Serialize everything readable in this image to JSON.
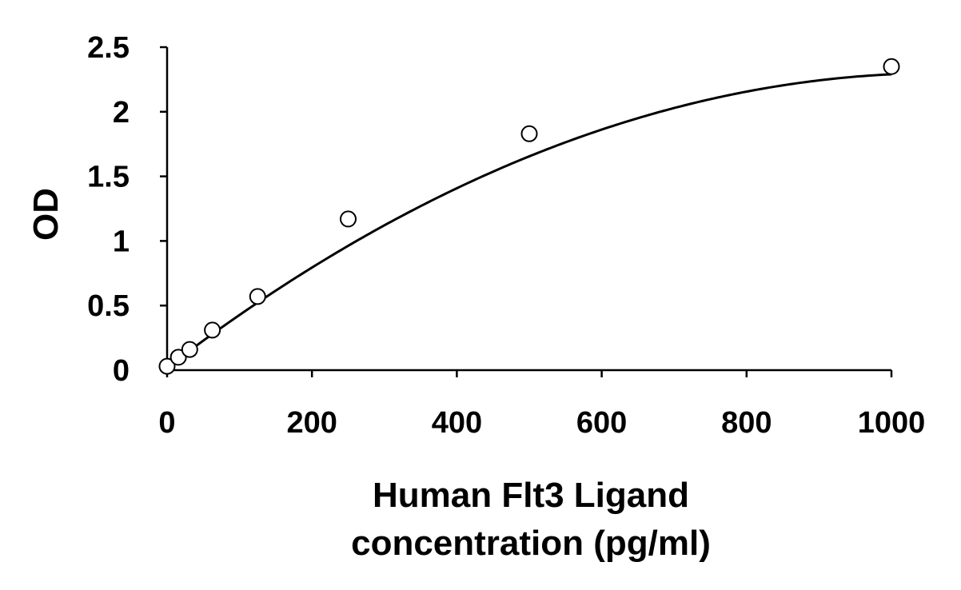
{
  "chart_data": {
    "type": "scatter",
    "title": "",
    "xlabel_lines": [
      "Human Flt3 Ligand",
      "concentration (pg/ml)"
    ],
    "ylabel": "OD",
    "xlim": [
      0,
      1000
    ],
    "ylim": [
      0,
      2.5
    ],
    "x_ticks": [
      0,
      200,
      400,
      600,
      800,
      1000
    ],
    "y_ticks": [
      0,
      0.5,
      1,
      1.5,
      2,
      2.5
    ],
    "y_tick_labels": [
      "0",
      "0.5",
      "1",
      "1.5",
      "2",
      "2.5"
    ],
    "grid": false,
    "legend": "none",
    "points": [
      {
        "x": 0,
        "y": 0.03
      },
      {
        "x": 15.6,
        "y": 0.1
      },
      {
        "x": 31.25,
        "y": 0.16
      },
      {
        "x": 62.5,
        "y": 0.31
      },
      {
        "x": 125,
        "y": 0.57
      },
      {
        "x": 250,
        "y": 1.17
      },
      {
        "x": 500,
        "y": 1.83
      },
      {
        "x": 1000,
        "y": 2.35
      }
    ],
    "fit_curve": {
      "type": "polynomial",
      "coefficients": [
        0.02,
        0.00427,
        -2e-06
      ]
    }
  }
}
